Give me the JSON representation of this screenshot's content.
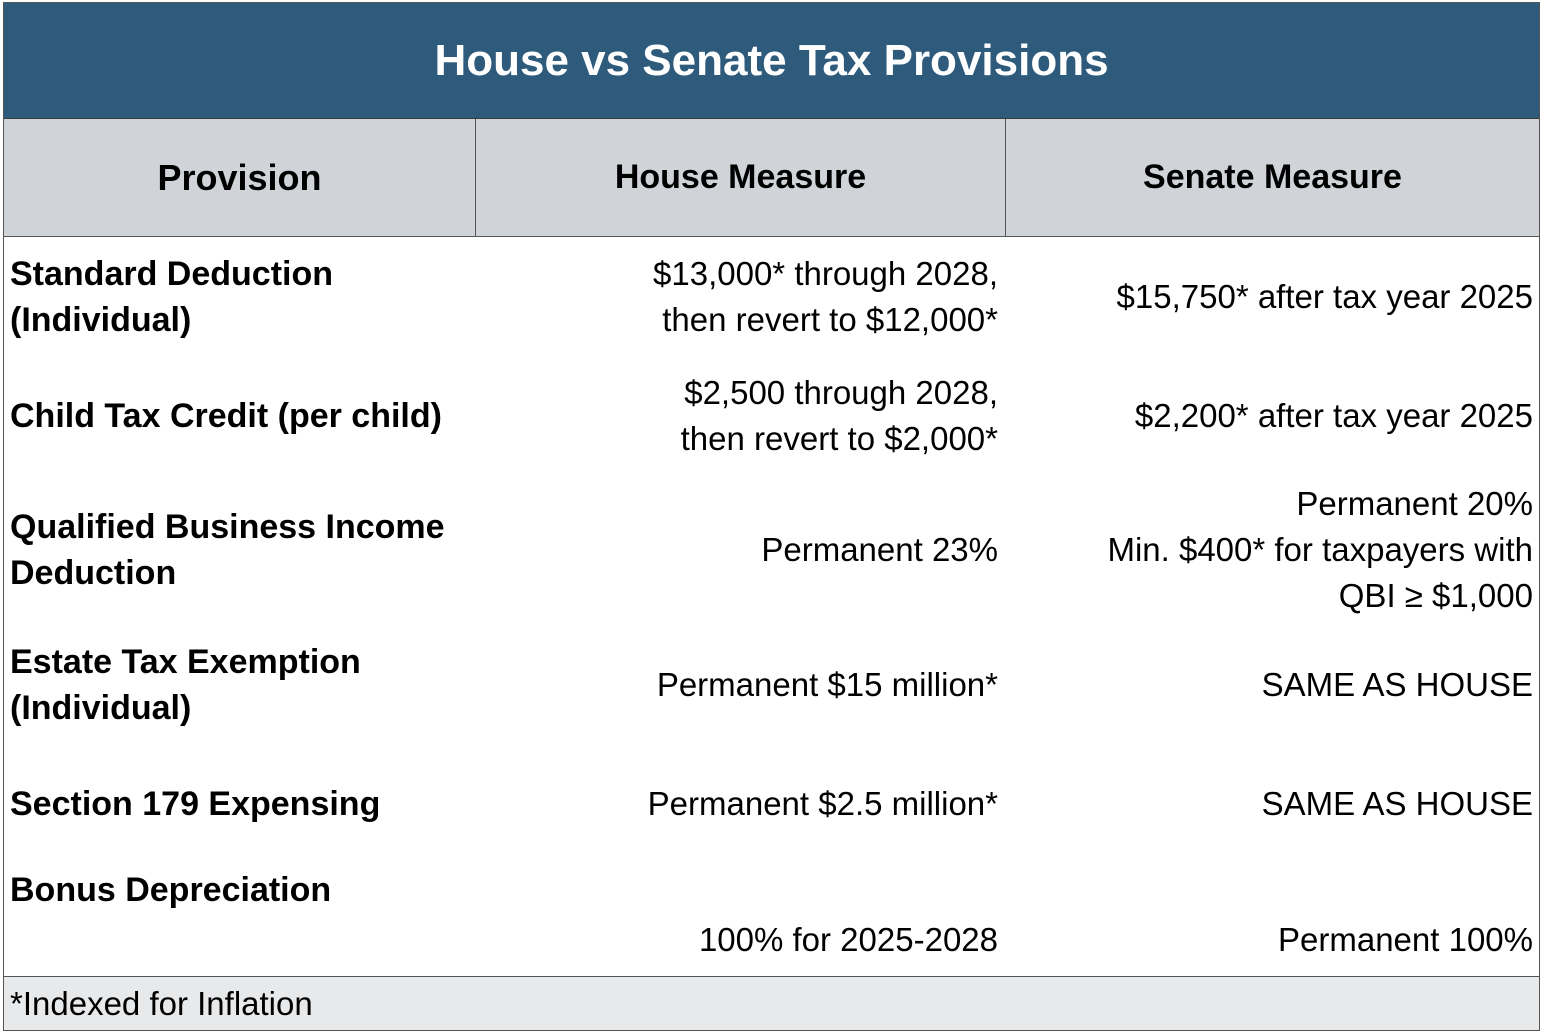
{
  "title": "House vs Senate Tax Provisions",
  "headers": {
    "provision": "Provision",
    "house": "House Measure",
    "senate": "Senate Measure"
  },
  "rows": [
    {
      "provision": [
        "Standard Deduction",
        "(Individual)"
      ],
      "house": [
        "$13,000* through 2028,",
        "then revert to $12,000*"
      ],
      "senate": [
        "$15,750* after tax year 2025"
      ]
    },
    {
      "provision": [
        "Child Tax Credit (per child)"
      ],
      "house": [
        "$2,500 through 2028,",
        "then revert to $2,000*"
      ],
      "senate": [
        "$2,200* after tax year 2025"
      ]
    },
    {
      "provision": [
        "Qualified Business Income",
        "Deduction"
      ],
      "house": [
        "Permanent 23%"
      ],
      "senate": [
        "Permanent 20%",
        "Min. $400* for taxpayers with",
        "QBI ≥ $1,000"
      ]
    },
    {
      "provision": [
        "Estate Tax Exemption",
        "(Individual)"
      ],
      "house": [
        "Permanent $15 million*"
      ],
      "senate": [
        "SAME AS HOUSE"
      ]
    },
    {
      "provision": [
        "Section 179 Expensing"
      ],
      "house": [
        "Permanent $2.5 million*"
      ],
      "senate": [
        "SAME AS HOUSE"
      ]
    },
    {
      "provision": [
        "Bonus Depreciation"
      ],
      "house": [
        "100% for 2025-2028"
      ],
      "senate": [
        "Permanent 100%"
      ]
    }
  ],
  "footnote": "*Indexed for Inflation",
  "colors": {
    "title_bg": "#2e5b7c",
    "header_bg": "#d0d4d9",
    "footer_bg": "#e8e9eb"
  }
}
